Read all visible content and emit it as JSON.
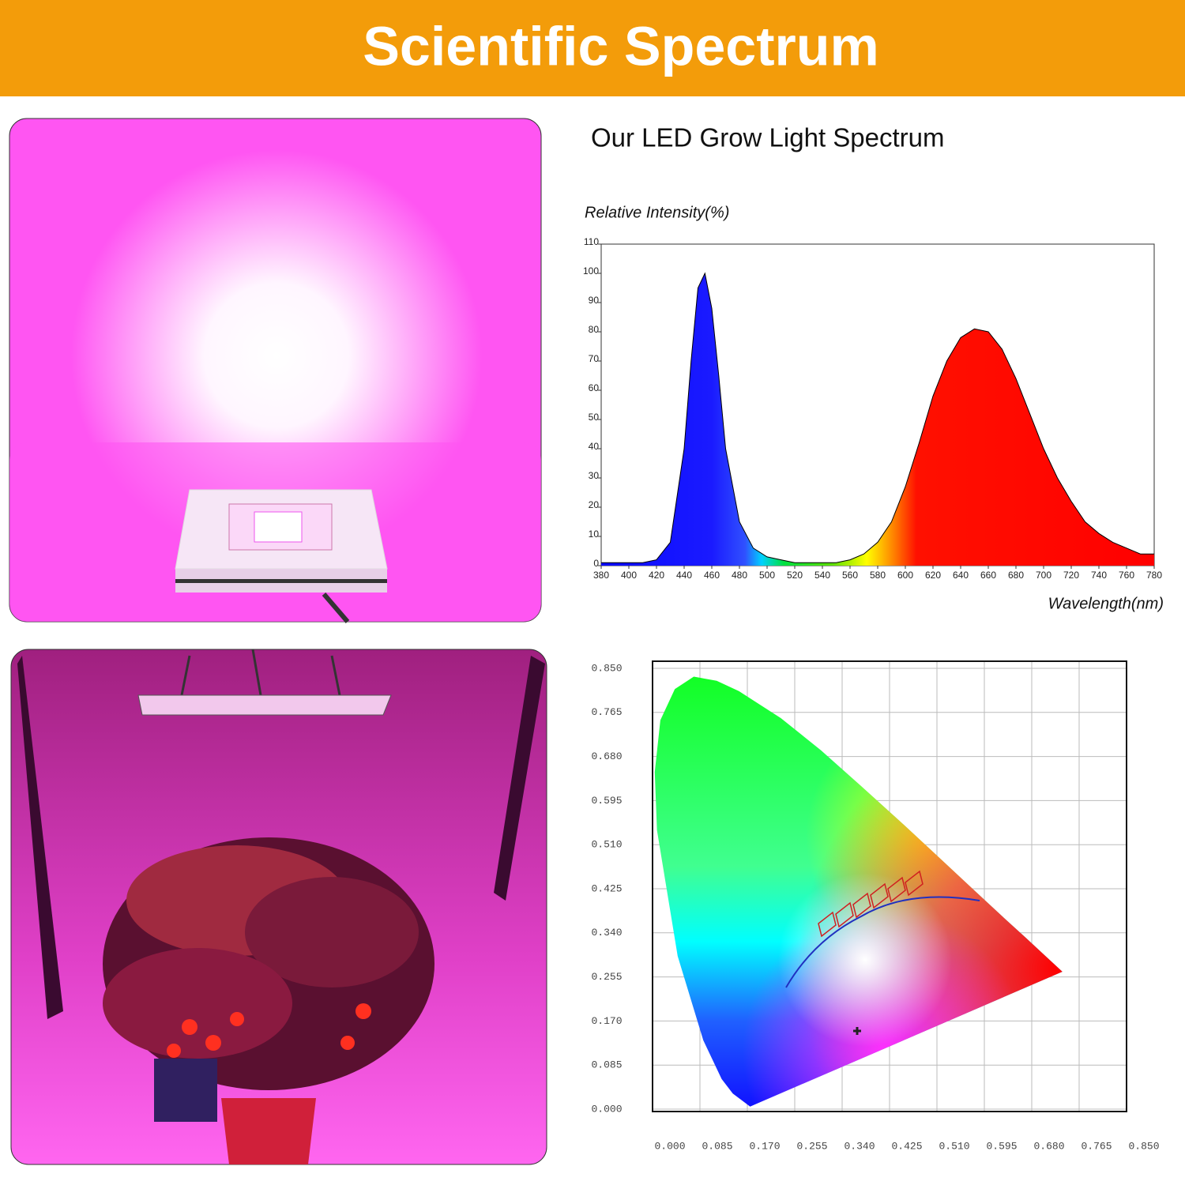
{
  "header": {
    "title": "Scientific Spectrum"
  },
  "chart_data": [
    {
      "type": "area",
      "title": "Our LED Grow Light Spectrum",
      "y_label": "Relative Intensity(%)",
      "x_label": "Wavelength(nm)",
      "x": [
        380,
        390,
        400,
        410,
        420,
        430,
        440,
        445,
        450,
        455,
        460,
        465,
        470,
        480,
        490,
        500,
        510,
        520,
        530,
        540,
        550,
        560,
        570,
        580,
        590,
        600,
        610,
        620,
        630,
        640,
        650,
        660,
        670,
        680,
        690,
        700,
        710,
        720,
        730,
        740,
        750,
        760,
        770,
        780
      ],
      "values": [
        1,
        1,
        1,
        1,
        2,
        8,
        40,
        70,
        95,
        100,
        88,
        65,
        40,
        15,
        6,
        3,
        2,
        1,
        1,
        1,
        1,
        2,
        4,
        8,
        15,
        27,
        42,
        58,
        70,
        78,
        81,
        80,
        74,
        64,
        52,
        40,
        30,
        22,
        15,
        11,
        8,
        6,
        4,
        4
      ],
      "xlim": [
        380,
        780
      ],
      "ylim": [
        0,
        110
      ],
      "xticks": [
        380,
        400,
        420,
        440,
        460,
        480,
        500,
        520,
        540,
        560,
        580,
        600,
        620,
        640,
        660,
        680,
        700,
        720,
        740,
        760,
        780
      ],
      "yticks": [
        0,
        10,
        20,
        30,
        40,
        50,
        60,
        70,
        80,
        90,
        100,
        110
      ]
    },
    {
      "type": "chromaticity",
      "xlim": [
        0,
        0.85
      ],
      "ylim": [
        0,
        0.85
      ],
      "grid": true,
      "xticks": [
        {
          "value": 0,
          "label": "0.000"
        },
        {
          "value": 0.085,
          "label": "0.085"
        },
        {
          "value": 0.17,
          "label": "0.170"
        },
        {
          "value": 0.255,
          "label": "0.255"
        },
        {
          "value": 0.34,
          "label": "0.340"
        },
        {
          "value": 0.425,
          "label": "0.425"
        },
        {
          "value": 0.51,
          "label": "0.510"
        },
        {
          "value": 0.595,
          "label": "0.595"
        },
        {
          "value": 0.68,
          "label": "0.680"
        },
        {
          "value": 0.765,
          "label": "0.765"
        },
        {
          "value": 0.85,
          "label": "0.850"
        }
      ],
      "yticks": [
        {
          "value": 0,
          "label": "0.000"
        },
        {
          "value": 0.085,
          "label": "0.085"
        },
        {
          "value": 0.17,
          "label": "0.170"
        },
        {
          "value": 0.255,
          "label": "0.255"
        },
        {
          "value": 0.34,
          "label": "0.340"
        },
        {
          "value": 0.425,
          "label": "0.425"
        },
        {
          "value": 0.51,
          "label": "0.510"
        },
        {
          "value": 0.595,
          "label": "0.595"
        },
        {
          "value": 0.68,
          "label": "0.680"
        },
        {
          "value": 0.765,
          "label": "0.765"
        },
        {
          "value": 0.85,
          "label": "0.850"
        }
      ]
    }
  ]
}
